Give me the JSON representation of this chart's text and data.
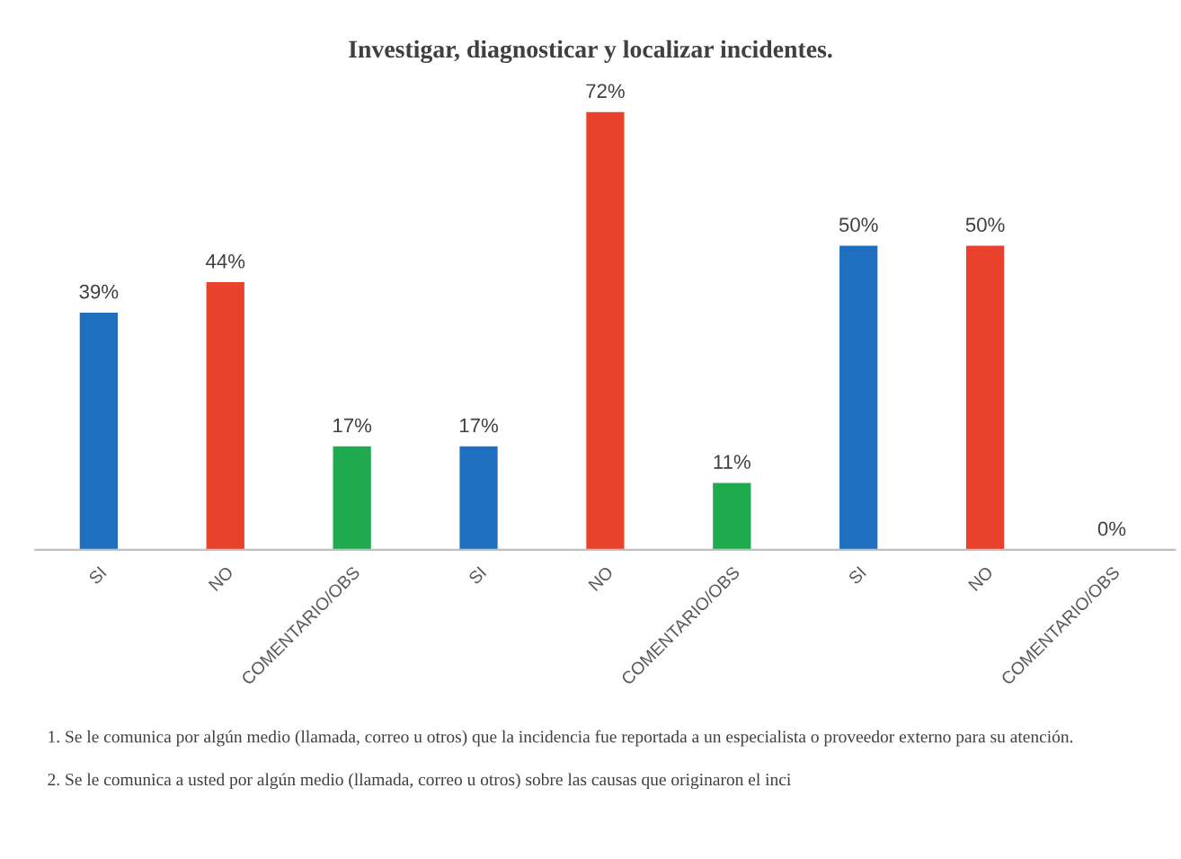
{
  "chart_data": {
    "type": "bar",
    "title": "Investigar, diagnosticar y localizar incidentes.",
    "categories": [
      "SI",
      "NO",
      "COMENTARIO/OBS",
      "SI",
      "NO",
      "COMENTARIO/OBS",
      "SI",
      "NO",
      "COMENTARIO/OBS"
    ],
    "values": [
      39,
      44,
      17,
      17,
      72,
      11,
      50,
      50,
      0
    ],
    "colors": [
      "#1f6fbf",
      "#e8412c",
      "#1faa4f",
      "#1f6fbf",
      "#e8412c",
      "#1faa4f",
      "#1f6fbf",
      "#e8412c",
      "#1faa4f"
    ],
    "value_labels": [
      "39%",
      "44%",
      "17%",
      "17%",
      "72%",
      "11%",
      "50%",
      "50%",
      "0%"
    ],
    "grid": false,
    "legend": false,
    "annotations": [
      "1. Se le comunica por algún medio (llamada, correo u otros) que la incidencia fue reportada a un especialista o proveedor externo para su atención.",
      "2. Se le comunica a usted por algún medio (llamada, correo u otros) sobre las causas que originaron el inci"
    ]
  }
}
